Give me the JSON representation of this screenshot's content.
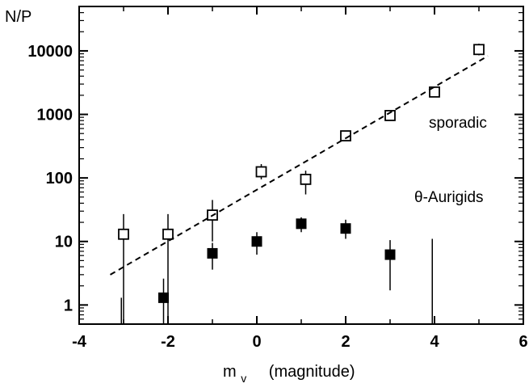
{
  "chart_data": {
    "type": "scatter",
    "title": "",
    "ylabel": "N/P",
    "xlabel_main": "m",
    "xlabel_sub": "v",
    "xlabel_unit": "(magnitude)",
    "y_scale": "log",
    "xlim": [
      -4,
      6
    ],
    "ylim": [
      0.5,
      50000
    ],
    "x_ticks": [
      -4,
      -2,
      0,
      2,
      4,
      6
    ],
    "x_tick_labels": [
      "-4",
      "-2",
      "0",
      "2",
      "4",
      "6"
    ],
    "y_ticks": [
      1,
      10,
      100,
      1000,
      10000
    ],
    "y_tick_labels": [
      "1",
      "10",
      "100",
      "1000",
      "10000"
    ],
    "grid": false,
    "legend": "none",
    "annotations": [
      {
        "text": "sporadic",
        "x": 3.3,
        "y": 680
      },
      {
        "text": "θ-Aurigids",
        "x": 3.2,
        "y": 54
      }
    ],
    "series": [
      {
        "name": "sporadic",
        "marker": "open-square",
        "color": "#000000",
        "points": [
          {
            "x": -3.0,
            "y": 13,
            "ylo": 0.5,
            "yhi": 27
          },
          {
            "x": -2.0,
            "y": 13,
            "ylo": 0.5,
            "yhi": 27
          },
          {
            "x": -1.0,
            "y": 26,
            "ylo": 10,
            "yhi": 45
          },
          {
            "x": 0.1,
            "y": 125,
            "ylo": 95,
            "yhi": 165
          },
          {
            "x": 1.1,
            "y": 95,
            "ylo": 55,
            "yhi": 130
          },
          {
            "x": 2.0,
            "y": 460,
            "ylo": 400,
            "yhi": 530
          },
          {
            "x": 3.0,
            "y": 960,
            "ylo": 880,
            "yhi": 1050
          },
          {
            "x": 4.0,
            "y": 2250,
            "ylo": 2000,
            "yhi": 2600
          },
          {
            "x": 5.0,
            "y": 10500,
            "ylo": 8500,
            "yhi": 13000
          }
        ]
      },
      {
        "name": "θ-Aurigids",
        "marker": "filled-square",
        "color": "#000000",
        "points": [
          {
            "x": -2.1,
            "y": 1.3,
            "ylo": 0.5,
            "yhi": 2.6
          },
          {
            "x": -1.0,
            "y": 6.5,
            "ylo": 3.6,
            "yhi": 9.5
          },
          {
            "x": 0.0,
            "y": 10,
            "ylo": 6.2,
            "yhi": 14
          },
          {
            "x": 1.0,
            "y": 19,
            "ylo": 14,
            "yhi": 24
          },
          {
            "x": 2.0,
            "y": 16,
            "ylo": 11,
            "yhi": 22
          },
          {
            "x": 3.0,
            "y": 6.2,
            "ylo": 1.7,
            "yhi": 10.5
          },
          {
            "x": 3.95,
            "y": 0.7,
            "ylo": 0.5,
            "yhi": 11
          }
        ]
      },
      {
        "name": "sporadic-fit",
        "style": "dashed-line",
        "color": "#000000",
        "points": [
          {
            "x": -3.3,
            "y": 3
          },
          {
            "x": 5.2,
            "y": 8300
          }
        ]
      }
    ],
    "extra_error_bars": [
      {
        "x": -3.05,
        "ylo": 0.5,
        "yhi": 1.3
      }
    ]
  }
}
